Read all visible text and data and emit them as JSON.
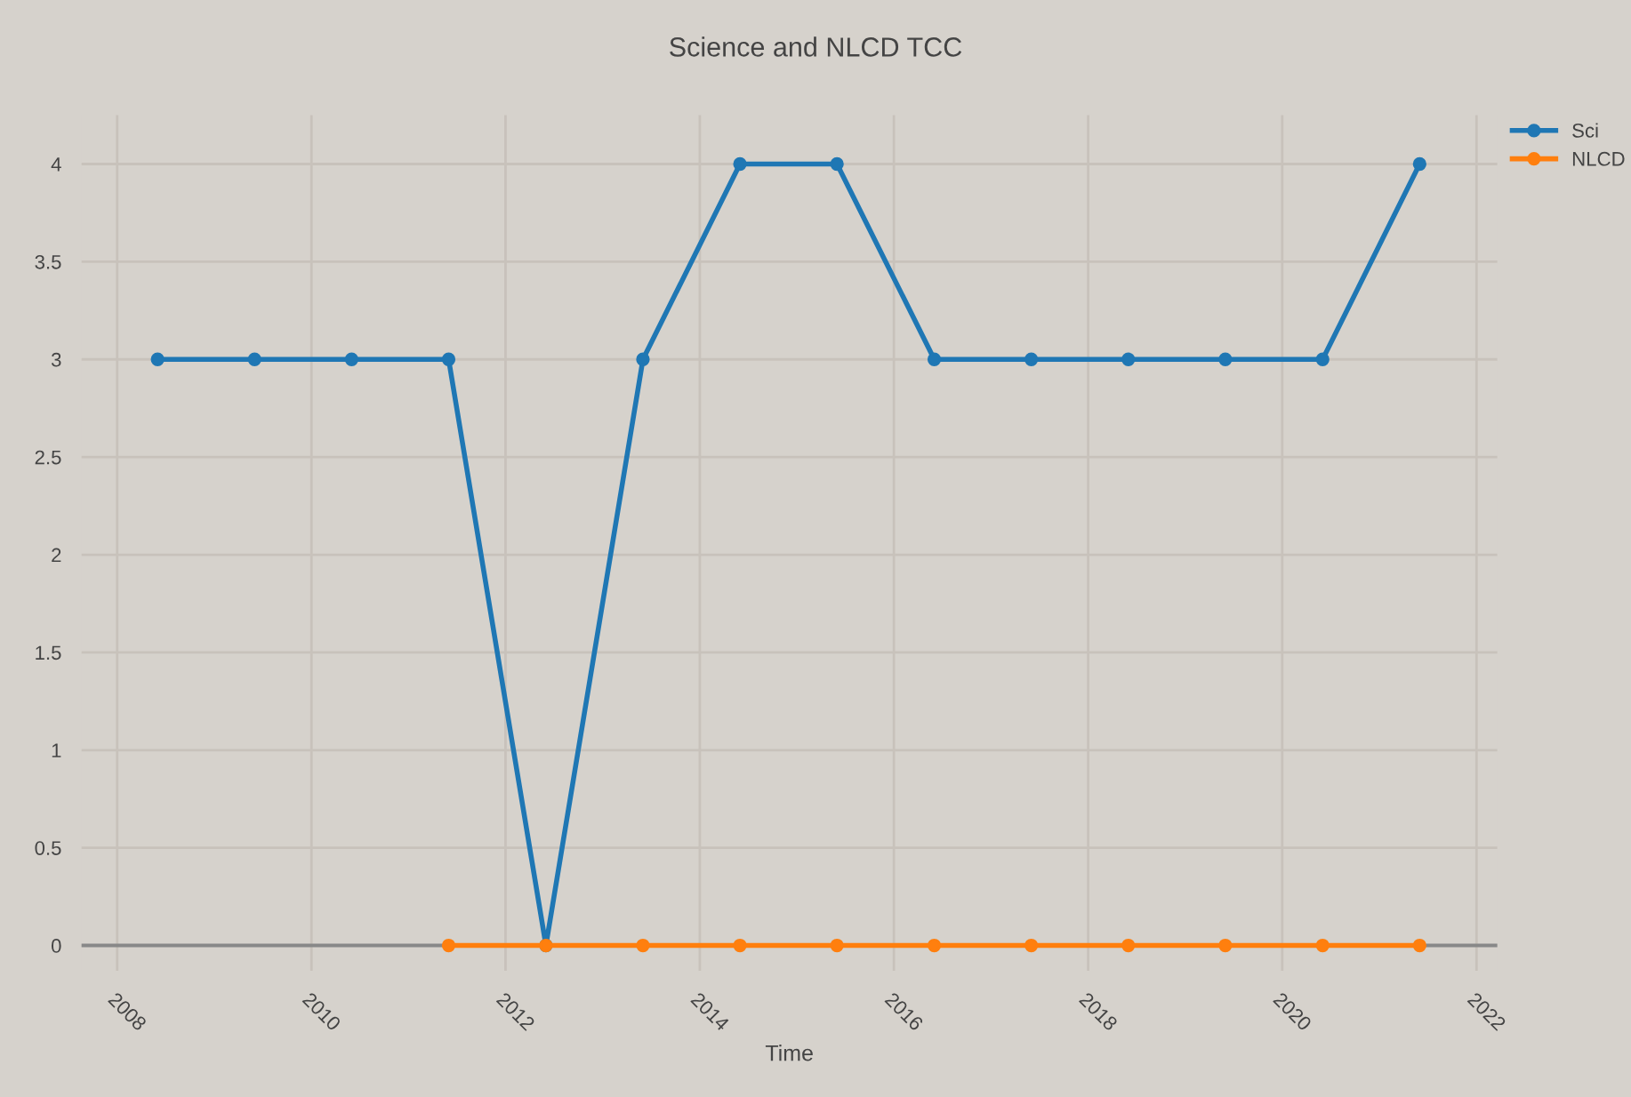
{
  "chart_data": {
    "type": "line",
    "title": "Science and NLCD TCC",
    "xlabel": "Time",
    "x": [
      "2008-06",
      "2009-06",
      "2010-06",
      "2011-06",
      "2012-06",
      "2013-06",
      "2014-06",
      "2015-06",
      "2016-06",
      "2017-06",
      "2018-06",
      "2019-06",
      "2020-06",
      "2021-06"
    ],
    "series": [
      {
        "name": "Sci",
        "color": "#1f77b4",
        "values": [
          3,
          3,
          3,
          3,
          0,
          3,
          4,
          4,
          3,
          3,
          3,
          3,
          3,
          4
        ]
      },
      {
        "name": "NLCD",
        "color": "#ff7f0e",
        "values": [
          null,
          null,
          null,
          0,
          0,
          0,
          0,
          0,
          0,
          0,
          0,
          0,
          0,
          0
        ]
      }
    ],
    "xlim": [
      "2007-08-20",
      "2022-03-20"
    ],
    "xticks": [
      "2008",
      "2010",
      "2012",
      "2014",
      "2016",
      "2018",
      "2020",
      "2022"
    ],
    "ylim": [
      -0.13,
      4.25
    ],
    "yticks": [
      0,
      0.5,
      1,
      1.5,
      2,
      2.5,
      3,
      3.5,
      4
    ],
    "grid": true,
    "legend": "top right",
    "marker": "circle",
    "line_style": "solid"
  }
}
